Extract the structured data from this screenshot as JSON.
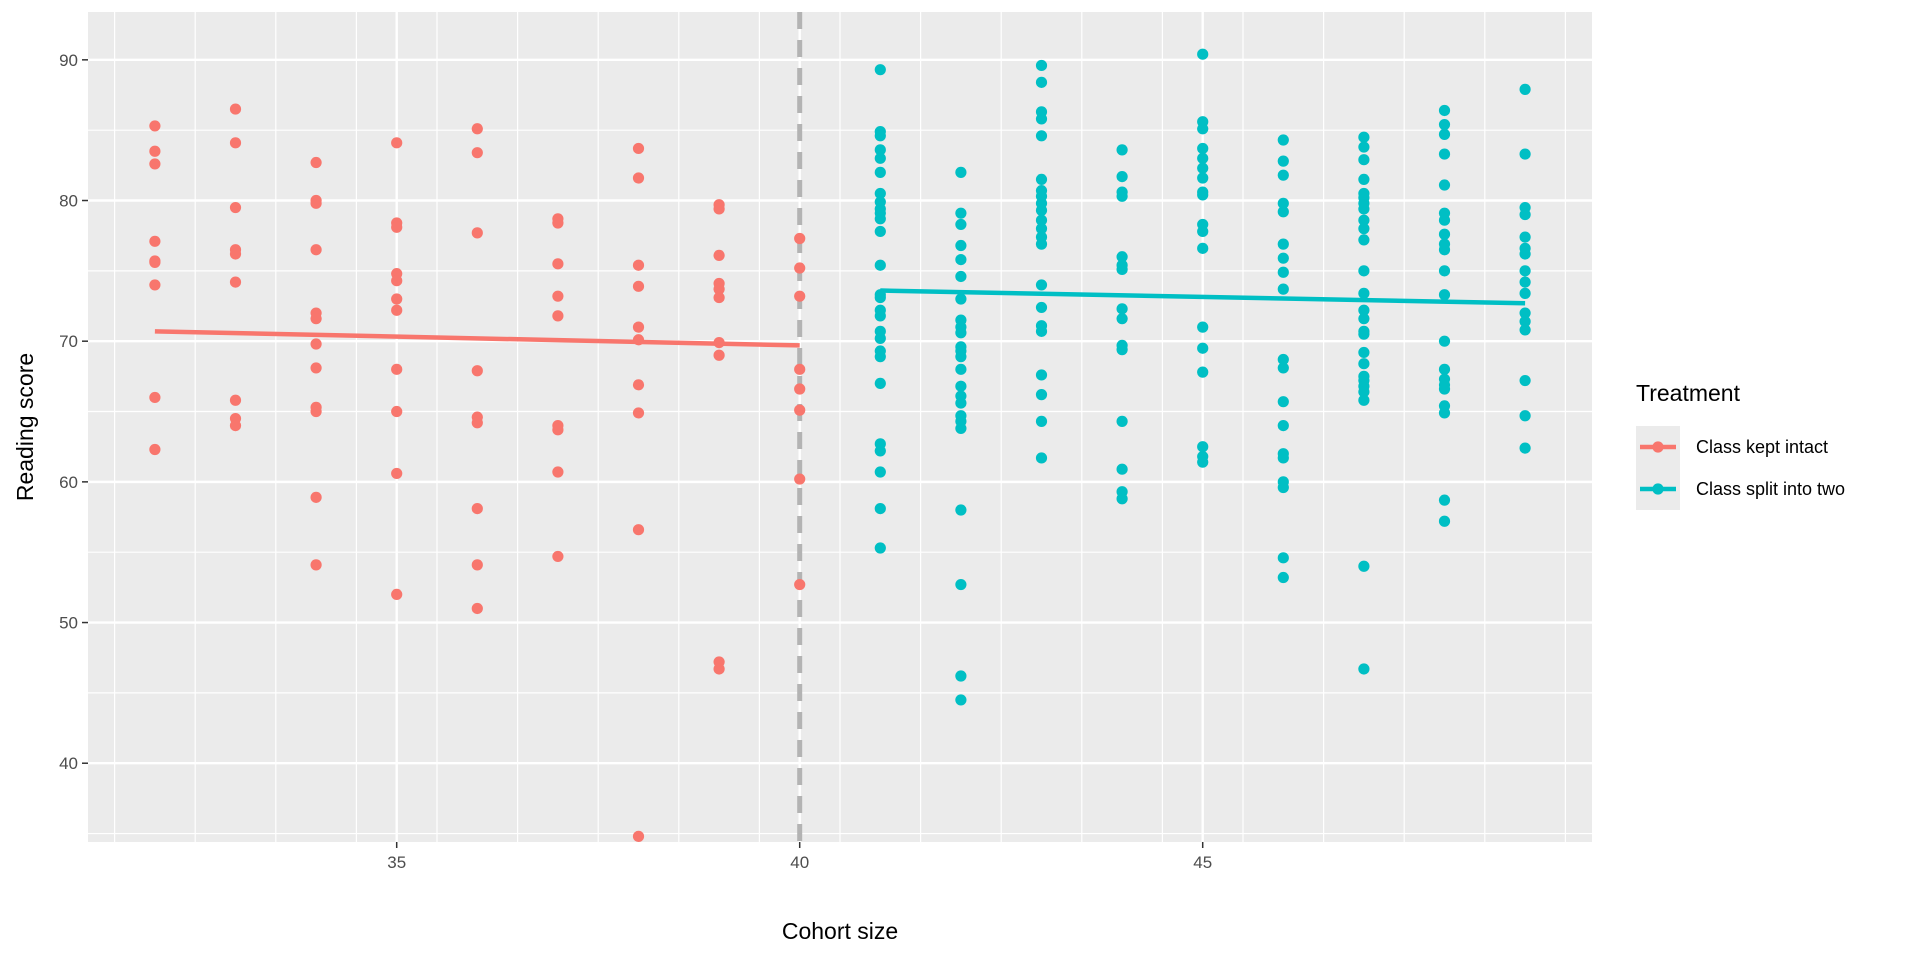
{
  "chart_data": {
    "type": "scatter",
    "title": "",
    "xlabel": "Cohort size",
    "ylabel": "Reading score",
    "xlim": [
      31.17,
      49.83
    ],
    "ylim": [
      34.4,
      93.4
    ],
    "x_ticks": [
      35,
      40,
      45
    ],
    "y_ticks": [
      40,
      50,
      60,
      70,
      80,
      90
    ],
    "grid": true,
    "cutoff_line": {
      "x": 40,
      "style": "dashed",
      "color": "#b3b3b3"
    },
    "legend": {
      "title": "Treatment",
      "placement": "right"
    },
    "series": [
      {
        "name": "Class kept intact",
        "color": "#F8766D",
        "points": [
          {
            "x": 32,
            "y": [
              85.3,
              83.5,
              82.6,
              77.1,
              75.7,
              75.6,
              74.0,
              66.0,
              62.3
            ]
          },
          {
            "x": 33,
            "y": [
              86.5,
              84.1,
              79.5,
              76.5,
              76.2,
              74.2,
              65.8,
              64.5,
              64.0
            ]
          },
          {
            "x": 34,
            "y": [
              82.7,
              80.0,
              79.8,
              76.5,
              72.0,
              71.6,
              69.8,
              68.1,
              65.3,
              65.0,
              58.9,
              54.1
            ]
          },
          {
            "x": 35,
            "y": [
              84.1,
              78.4,
              78.1,
              74.8,
              74.3,
              73.0,
              72.2,
              68.0,
              65.0,
              60.6,
              52.0
            ]
          },
          {
            "x": 36,
            "y": [
              85.1,
              83.4,
              77.7,
              67.9,
              64.6,
              64.2,
              58.1,
              54.1,
              51.0
            ]
          },
          {
            "x": 37,
            "y": [
              78.7,
              78.4,
              75.5,
              73.2,
              71.8,
              64.0,
              63.7,
              60.7,
              54.7
            ]
          },
          {
            "x": 38,
            "y": [
              83.7,
              81.6,
              75.4,
              73.9,
              71.0,
              70.1,
              66.9,
              64.9,
              56.6,
              34.8
            ]
          },
          {
            "x": 39,
            "y": [
              79.7,
              79.4,
              76.1,
              74.1,
              73.7,
              73.1,
              69.9,
              69.0,
              47.2,
              46.7
            ]
          },
          {
            "x": 40,
            "y": [
              77.3,
              75.2,
              73.2,
              68.0,
              66.6,
              65.1,
              60.2,
              52.7
            ]
          }
        ],
        "fit": {
          "x": [
            32,
            40
          ],
          "y": [
            70.7,
            69.7
          ]
        }
      },
      {
        "name": "Class split into two",
        "color": "#00BFC4",
        "points": [
          {
            "x": 41,
            "y": [
              89.3,
              84.9,
              84.6,
              83.6,
              83.0,
              82.0,
              80.5,
              79.9,
              79.4,
              79.1,
              78.7,
              77.8,
              75.4,
              73.3,
              73.1,
              72.2,
              71.8,
              70.7,
              70.2,
              69.3,
              68.9,
              67.0,
              62.7,
              62.2,
              60.7,
              58.1,
              55.3
            ]
          },
          {
            "x": 42,
            "y": [
              82.0,
              79.1,
              78.3,
              76.8,
              75.8,
              74.6,
              73.0,
              71.5,
              71.0,
              70.6,
              69.6,
              69.3,
              68.9,
              68.0,
              66.8,
              66.1,
              65.6,
              64.7,
              64.3,
              63.8,
              58.0,
              52.7,
              46.2,
              44.5
            ]
          },
          {
            "x": 43,
            "y": [
              89.6,
              88.4,
              86.3,
              85.8,
              84.6,
              81.5,
              80.7,
              80.3,
              79.8,
              79.3,
              78.6,
              78.0,
              77.4,
              76.9,
              74.0,
              72.4,
              71.1,
              70.7,
              67.6,
              66.2,
              64.3,
              61.7
            ]
          },
          {
            "x": 44,
            "y": [
              83.6,
              81.7,
              80.6,
              80.3,
              76.0,
              75.4,
              75.1,
              72.3,
              71.6,
              69.7,
              69.4,
              64.3,
              60.9,
              59.3,
              58.8
            ]
          },
          {
            "x": 45,
            "y": [
              90.4,
              85.6,
              85.1,
              83.7,
              83.0,
              82.3,
              81.6,
              80.6,
              80.4,
              78.3,
              77.8,
              76.6,
              71.0,
              69.5,
              67.8,
              62.5,
              61.8,
              61.4
            ]
          },
          {
            "x": 46,
            "y": [
              84.3,
              82.8,
              81.8,
              79.8,
              79.2,
              76.9,
              75.9,
              74.9,
              73.7,
              68.7,
              68.1,
              65.7,
              64.0,
              62.0,
              61.7,
              60.0,
              59.6,
              54.6,
              53.2
            ]
          },
          {
            "x": 47,
            "y": [
              84.5,
              83.8,
              82.9,
              81.5,
              80.5,
              80.2,
              79.8,
              79.4,
              78.6,
              78.0,
              77.2,
              75.0,
              73.4,
              72.2,
              71.6,
              70.7,
              70.5,
              69.2,
              68.4,
              67.5,
              67.2,
              66.8,
              66.4,
              65.8,
              54.0,
              46.7
            ]
          },
          {
            "x": 48,
            "y": [
              86.4,
              85.4,
              84.7,
              83.3,
              81.1,
              79.1,
              78.6,
              77.6,
              76.9,
              76.5,
              75.0,
              73.3,
              70.0,
              68.0,
              67.3,
              66.9,
              66.6,
              65.4,
              64.9,
              58.7,
              57.2
            ]
          },
          {
            "x": 49,
            "y": [
              87.9,
              83.3,
              79.5,
              79.0,
              77.4,
              76.6,
              76.2,
              75.0,
              74.2,
              73.4,
              72.0,
              71.4,
              70.8,
              67.2,
              64.7,
              62.4
            ]
          }
        ],
        "fit": {
          "x": [
            41,
            49
          ],
          "y": [
            73.6,
            72.7
          ]
        }
      }
    ]
  }
}
